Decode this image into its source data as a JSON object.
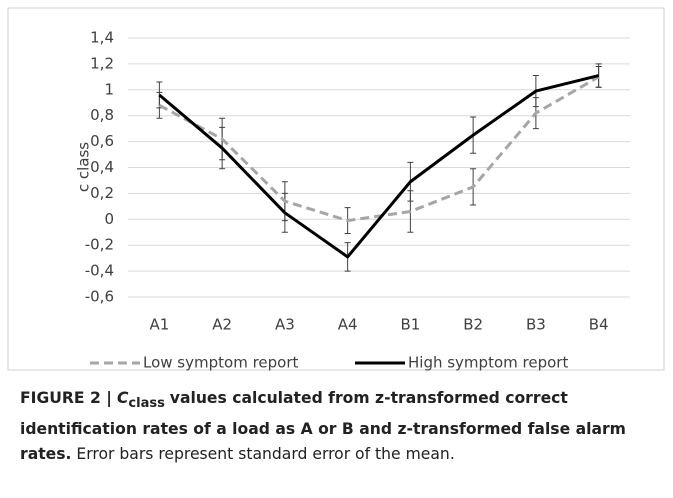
{
  "chart_data": {
    "type": "line",
    "y_label": "c class",
    "categories": [
      "A1",
      "A2",
      "A3",
      "A4",
      "B1",
      "B2",
      "B3",
      "B4"
    ],
    "series": [
      {
        "name": "Low symptom report",
        "color": "#a6a6a6",
        "dashed": true,
        "values": [
          0.88,
          0.62,
          0.14,
          -0.01,
          0.06,
          0.25,
          0.82,
          1.1
        ],
        "errors": [
          0.1,
          0.16,
          0.15,
          0.1,
          0.16,
          0.14,
          0.12,
          0.08
        ]
      },
      {
        "name": "High symptom report",
        "color": "#000000",
        "dashed": false,
        "values": [
          0.96,
          0.55,
          0.05,
          -0.29,
          0.29,
          0.65,
          0.99,
          1.11
        ],
        "errors": [
          0.1,
          0.16,
          0.15,
          0.11,
          0.15,
          0.14,
          0.12,
          0.09
        ]
      }
    ],
    "ylim": [
      -0.6,
      1.4
    ],
    "yticks": [
      {
        "value": -0.6,
        "label": "-0,6"
      },
      {
        "value": -0.4,
        "label": "-0,4"
      },
      {
        "value": -0.2,
        "label": "-0,2"
      },
      0,
      {
        "value": 0.2,
        "label": "0,2"
      },
      {
        "value": 0.4,
        "label": "0,4"
      },
      {
        "value": 0.6,
        "label": "0,6"
      },
      {
        "value": 0.8,
        "label": "0,8"
      },
      1,
      {
        "value": 1.2,
        "label": "1,2"
      },
      {
        "value": 1.4,
        "label": "1,4"
      }
    ],
    "grid": true,
    "legend": "bottom"
  },
  "caption": {
    "label": "FIGURE 2 |",
    "symbol": "C",
    "subscript": "class",
    "bold_text": "values calculated from z-transformed correct identification rates of a load as A or B and z-transformed false alarm rates.",
    "text": "Error bars represent standard error of the mean."
  }
}
